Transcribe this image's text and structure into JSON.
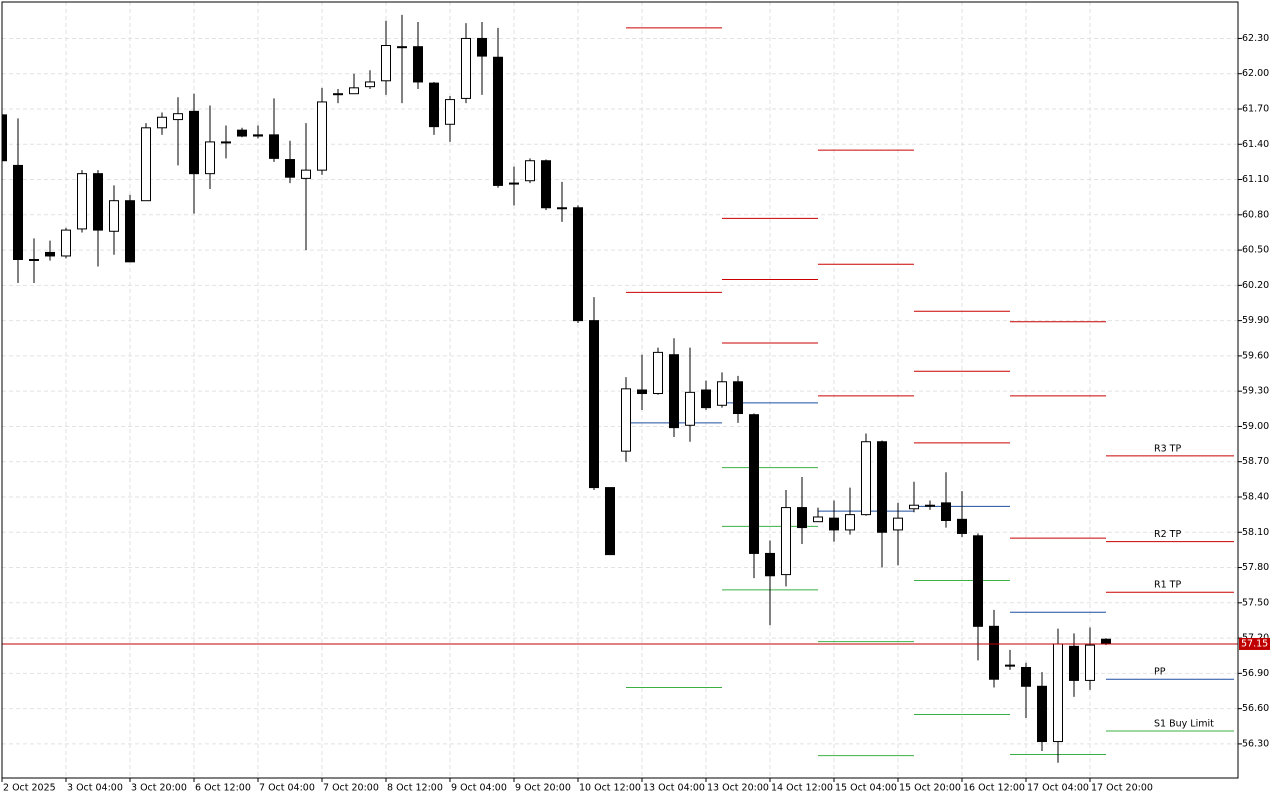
{
  "chart_data": {
    "type": "candlestick",
    "categories": [
      "2 Oct 2025",
      null,
      null,
      null,
      "3 Oct 04:00",
      null,
      null,
      null,
      "3 Oct 20:00",
      null,
      null,
      null,
      "6 Oct 12:00",
      null,
      null,
      null,
      "7 Oct 04:00",
      null,
      null,
      null,
      "7 Oct 20:00",
      null,
      null,
      null,
      "8 Oct 12:00",
      null,
      null,
      null,
      "9 Oct 04:00",
      null,
      null,
      null,
      "9 Oct 20:00",
      null,
      null,
      null,
      "10 Oct 12:00",
      null,
      null,
      null,
      "13 Oct 04:00",
      null,
      null,
      null,
      "13 Oct 20:00",
      null,
      null,
      null,
      "14 Oct 12:00",
      null,
      null,
      null,
      "15 Oct 04:00",
      null,
      null,
      null,
      "15 Oct 20:00",
      null,
      null,
      null,
      "16 Oct 12:00",
      null,
      null,
      null,
      "17 Oct 04:00",
      null,
      null,
      null,
      "17 Oct 20:00",
      null
    ],
    "open": [
      61.65,
      61.22,
      60.42,
      60.48,
      60.45,
      60.68,
      61.15,
      60.66,
      60.92,
      60.92,
      61.54,
      61.61,
      61.68,
      61.15,
      61.42,
      61.52,
      61.48,
      61.48,
      61.27,
      61.11,
      61.18,
      61.83,
      61.83,
      61.89,
      61.94,
      62.23,
      62.23,
      61.92,
      61.57,
      61.79,
      62.3,
      62.14,
      61.07,
      61.09,
      61.26,
      60.86,
      60.86,
      59.9,
      58.48,
      58.79,
      59.31,
      59.28,
      59.61,
      59.01,
      59.31,
      59.18,
      59.38,
      59.1,
      57.92,
      57.74,
      58.31,
      58.19,
      58.22,
      58.12,
      58.25,
      58.87,
      58.12,
      58.3,
      58.33,
      58.35,
      58.21,
      58.07,
      57.3,
      56.97,
      56.95,
      56.79,
      56.32,
      57.13,
      56.84,
      57.19
    ],
    "high": [
      61.66,
      61.62,
      60.6,
      60.58,
      60.69,
      61.18,
      61.18,
      61.05,
      60.97,
      61.58,
      61.67,
      61.8,
      61.83,
      61.73,
      61.56,
      61.54,
      61.56,
      61.79,
      61.43,
      61.58,
      61.88,
      61.87,
      62.0,
      62.03,
      62.45,
      62.5,
      62.44,
      61.93,
      61.81,
      62.43,
      62.44,
      62.39,
      61.21,
      61.28,
      61.27,
      61.08,
      60.88,
      60.1,
      58.48,
      59.42,
      59.61,
      59.67,
      59.75,
      59.67,
      59.39,
      59.46,
      59.43,
      59.11,
      58.03,
      58.46,
      58.57,
      58.31,
      58.37,
      58.48,
      58.94,
      58.88,
      58.35,
      58.53,
      58.37,
      58.61,
      58.45,
      58.09,
      57.44,
      57.1,
      56.99,
      56.91,
      57.28,
      57.24,
      57.29,
      57.2
    ],
    "low": [
      61.22,
      60.22,
      60.22,
      60.41,
      60.43,
      60.65,
      60.36,
      60.46,
      60.4,
      60.92,
      61.48,
      61.22,
      60.81,
      61.02,
      61.28,
      61.46,
      61.45,
      61.25,
      61.07,
      60.5,
      61.14,
      61.75,
      61.83,
      61.87,
      61.82,
      61.75,
      61.87,
      61.48,
      61.42,
      61.75,
      61.82,
      61.03,
      60.88,
      61.07,
      60.84,
      60.74,
      59.88,
      58.46,
      57.91,
      58.7,
      59.14,
      59.27,
      58.91,
      58.87,
      59.14,
      59.16,
      59.03,
      57.71,
      57.31,
      57.64,
      58.0,
      58.19,
      58.02,
      58.08,
      58.24,
      57.8,
      57.82,
      58.27,
      58.29,
      58.14,
      58.06,
      57.01,
      56.78,
      56.93,
      56.52,
      56.24,
      56.14,
      56.7,
      56.76,
      57.14
    ],
    "close": [
      61.26,
      60.42,
      60.42,
      60.45,
      60.67,
      61.15,
      60.67,
      60.92,
      60.4,
      61.54,
      61.63,
      61.66,
      61.15,
      61.42,
      61.42,
      61.47,
      61.47,
      61.28,
      61.12,
      61.18,
      61.76,
      61.83,
      61.88,
      61.93,
      62.24,
      62.23,
      61.93,
      61.55,
      61.78,
      62.3,
      62.15,
      61.05,
      61.07,
      61.26,
      60.86,
      60.86,
      59.9,
      58.48,
      57.91,
      59.32,
      59.28,
      59.63,
      58.99,
      59.29,
      59.16,
      59.38,
      59.11,
      57.92,
      57.73,
      58.31,
      58.14,
      58.23,
      58.12,
      58.25,
      58.87,
      58.1,
      58.22,
      58.33,
      58.33,
      58.2,
      58.09,
      57.3,
      56.85,
      56.97,
      56.79,
      56.32,
      57.15,
      56.84,
      57.14,
      57.15
    ],
    "up_color": "#ffffff",
    "down_color": "#000000",
    "ylim": [
      56.01,
      62.61
    ],
    "yticks": [
      {
        "value": 62.3,
        "label": "62.30"
      },
      {
        "value": 62.0,
        "label": "62.00"
      },
      {
        "value": 61.7,
        "label": "61.70"
      },
      {
        "value": 61.4,
        "label": "61.40"
      },
      {
        "value": 61.1,
        "label": "61.10"
      },
      {
        "value": 60.8,
        "label": "60.80"
      },
      {
        "value": 60.5,
        "label": "60.50"
      },
      {
        "value": 60.2,
        "label": "60.20"
      },
      {
        "value": 59.9,
        "label": "59.90"
      },
      {
        "value": 59.6,
        "label": "59.60"
      },
      {
        "value": 59.3,
        "label": "59.30"
      },
      {
        "value": 59.0,
        "label": "59.00"
      },
      {
        "value": 58.7,
        "label": "58.70"
      },
      {
        "value": 58.4,
        "label": "58.40"
      },
      {
        "value": 58.1,
        "label": "58.10"
      },
      {
        "value": 57.8,
        "label": "57.80"
      },
      {
        "value": 57.5,
        "label": "57.50"
      },
      {
        "value": 57.2,
        "label": "57.20"
      },
      {
        "value": 56.9,
        "label": "56.90"
      },
      {
        "value": 56.6,
        "label": "56.60"
      },
      {
        "value": 56.3,
        "label": "56.30"
      }
    ],
    "grid": true,
    "last_price": 57.15,
    "last_price_color": "#c00000",
    "levels": [
      {
        "start": 39,
        "end": 45,
        "lines": [
          {
            "value": 62.39,
            "color": "#cc0000"
          },
          {
            "value": 60.14,
            "color": "#cc0000"
          },
          {
            "value": 59.03,
            "color": "#1f4f9f"
          },
          {
            "value": 56.78,
            "color": "#3cb043"
          }
        ]
      },
      {
        "start": 45,
        "end": 51,
        "lines": [
          {
            "value": 60.77,
            "color": "#cc0000"
          },
          {
            "value": 60.25,
            "color": "#cc0000"
          },
          {
            "value": 59.71,
            "color": "#cc0000"
          },
          {
            "value": 59.2,
            "color": "#1f4f9f"
          },
          {
            "value": 58.65,
            "color": "#3cb043"
          },
          {
            "value": 58.15,
            "color": "#3cb043"
          },
          {
            "value": 57.61,
            "color": "#3cb043"
          }
        ]
      },
      {
        "start": 51,
        "end": 57,
        "lines": [
          {
            "value": 61.35,
            "color": "#cc0000"
          },
          {
            "value": 60.38,
            "color": "#cc0000"
          },
          {
            "value": 59.26,
            "color": "#cc0000"
          },
          {
            "value": 58.28,
            "color": "#1f4f9f"
          },
          {
            "value": 57.17,
            "color": "#3cb043"
          },
          {
            "value": 56.2,
            "color": "#3cb043"
          }
        ]
      },
      {
        "start": 57,
        "end": 63,
        "lines": [
          {
            "value": 59.98,
            "color": "#cc0000"
          },
          {
            "value": 59.47,
            "color": "#cc0000"
          },
          {
            "value": 58.86,
            "color": "#cc0000"
          },
          {
            "value": 58.32,
            "color": "#1f4f9f"
          },
          {
            "value": 57.69,
            "color": "#3cb043"
          },
          {
            "value": 56.55,
            "color": "#3cb043"
          }
        ]
      },
      {
        "start": 63,
        "end": 69,
        "lines": [
          {
            "value": 59.89,
            "color": "#cc0000"
          },
          {
            "value": 59.26,
            "color": "#cc0000"
          },
          {
            "value": 58.05,
            "color": "#cc0000"
          },
          {
            "value": 57.42,
            "color": "#1f4f9f"
          },
          {
            "value": 56.21,
            "color": "#3cb043"
          }
        ]
      },
      {
        "start": 69,
        "end": 77,
        "lines": [
          {
            "value": 58.75,
            "color": "#cc0000",
            "label": "R3 TP"
          },
          {
            "value": 58.02,
            "color": "#cc0000",
            "label": "R2 TP"
          },
          {
            "value": 57.59,
            "color": "#cc0000",
            "label": "R1 TP"
          },
          {
            "value": 56.85,
            "color": "#1f4f9f",
            "label": "PP"
          },
          {
            "value": 56.41,
            "color": "#3cb043",
            "label": "S1 Buy Limit"
          }
        ]
      }
    ]
  }
}
